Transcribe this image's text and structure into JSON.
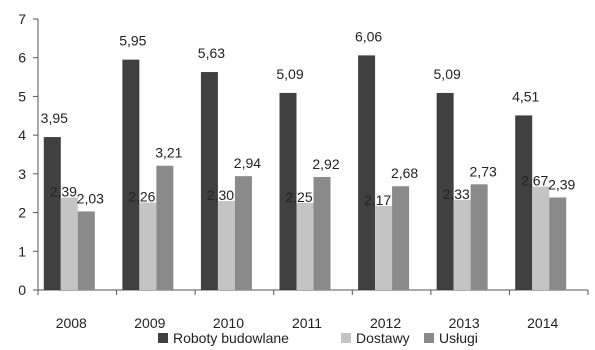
{
  "chart_data": {
    "type": "bar",
    "categories": [
      "2008",
      "2009",
      "2010",
      "2011",
      "2012",
      "2013",
      "2014"
    ],
    "series": [
      {
        "name": "Roboty budowlane",
        "color": "#404040",
        "values": [
          3.95,
          5.95,
          5.63,
          5.09,
          6.06,
          5.09,
          4.51
        ],
        "labels": [
          "3,95",
          "5,95",
          "5,63",
          "5,09",
          "6,06",
          "5,09",
          "4,51"
        ]
      },
      {
        "name": "Dostawy",
        "color": "#c4c4c4",
        "values": [
          2.39,
          2.26,
          2.3,
          2.25,
          2.17,
          2.33,
          2.67
        ],
        "labels": [
          "2,39",
          "2,26",
          "2,30",
          "2,25",
          "2,17",
          "2,33",
          "2,67"
        ]
      },
      {
        "name": "Usługi",
        "color": "#8a8a8a",
        "values": [
          2.03,
          3.21,
          2.94,
          2.92,
          2.68,
          2.73,
          2.39
        ],
        "labels": [
          "2,03",
          "3,21",
          "2,94",
          "2,92",
          "2,68",
          "2,73",
          "2,39"
        ]
      }
    ],
    "yticks": [
      "0",
      "1",
      "2",
      "3",
      "4",
      "5",
      "6",
      "7"
    ],
    "ylim": [
      0,
      7
    ],
    "grid": false,
    "legend_position": "bottom"
  }
}
